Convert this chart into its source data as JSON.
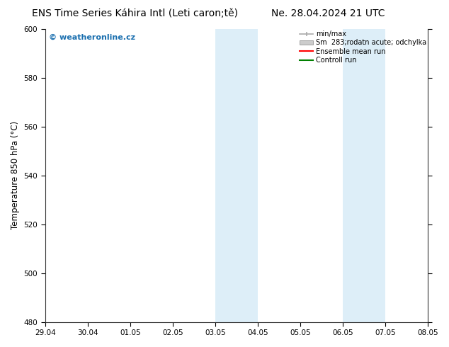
{
  "title_left": "ENS Time Series Káhira Intl (Leti caron;tě)",
  "title_right": "Ne. 28.04.2024 21 UTC",
  "ylabel": "Temperature 850 hPa (°C)",
  "ylim": [
    480,
    600
  ],
  "yticks": [
    480,
    500,
    520,
    540,
    560,
    580,
    600
  ],
  "xlim": [
    0,
    9
  ],
  "xticks": [
    0,
    1,
    2,
    3,
    4,
    5,
    6,
    7,
    8,
    9
  ],
  "xticklabels": [
    "29.04",
    "30.04",
    "01.05",
    "02.05",
    "03.05",
    "04.05",
    "05.05",
    "06.05",
    "07.05",
    "08.05"
  ],
  "shaded_regions": [
    {
      "xmin": 4,
      "xmax": 5,
      "color": "#ddeef8"
    },
    {
      "xmin": 7,
      "xmax": 8,
      "color": "#ddeef8"
    }
  ],
  "legend_labels": [
    "min/max",
    "Sm  283;rodatn acute; odchylka",
    "Ensemble mean run",
    "Controll run"
  ],
  "legend_colors": [
    "#aaaaaa",
    "#cccccc",
    "red",
    "green"
  ],
  "watermark": "© weatheronline.cz",
  "watermark_color": "#1a6faf",
  "background_color": "#ffffff",
  "plot_bg_color": "#ffffff",
  "title_fontsize": 10,
  "tick_fontsize": 7.5,
  "ylabel_fontsize": 8.5,
  "legend_fontsize": 7,
  "watermark_fontsize": 8
}
